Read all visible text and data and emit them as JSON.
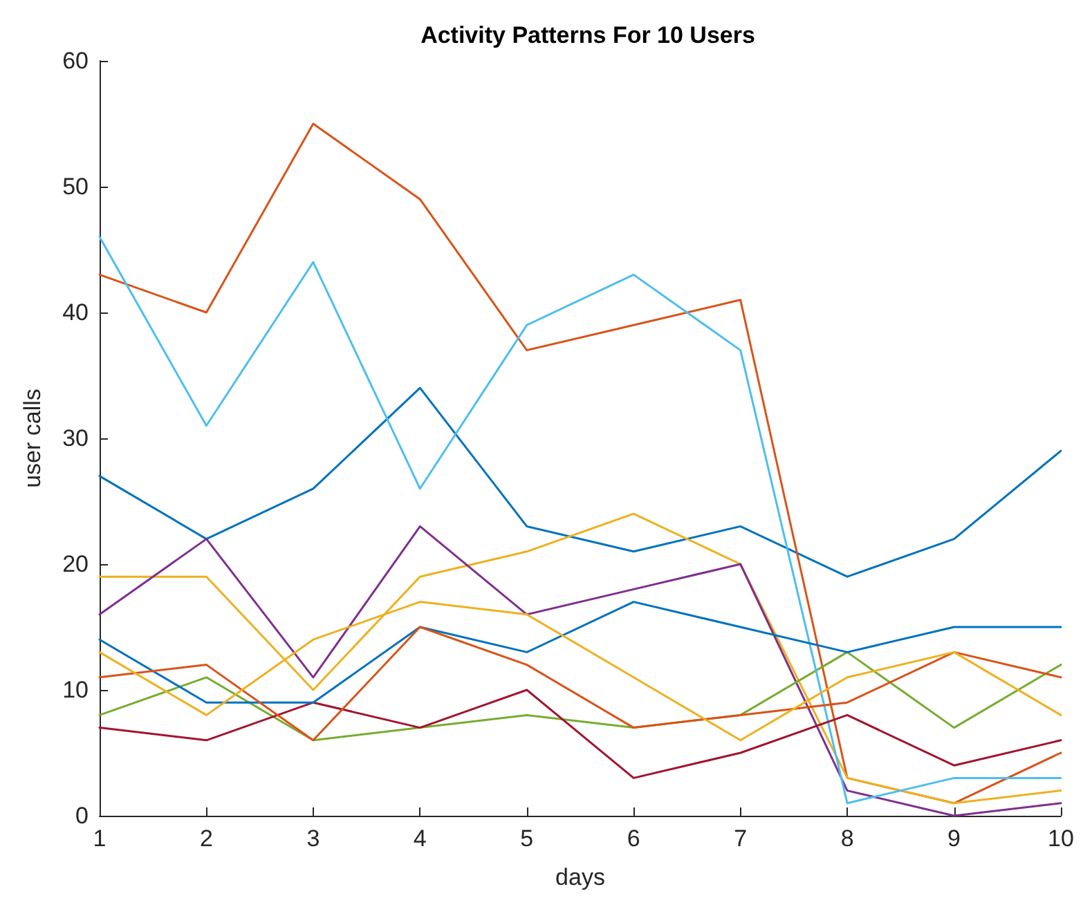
{
  "chart_data": {
    "type": "line",
    "title": "Activity Patterns For 10 Users",
    "xlabel": "days",
    "ylabel": "user calls",
    "x": [
      1,
      2,
      3,
      4,
      5,
      6,
      7,
      8,
      9,
      10
    ],
    "xlim": [
      1,
      10
    ],
    "xticks": [
      1,
      2,
      3,
      4,
      5,
      6,
      7,
      8,
      9,
      10
    ],
    "ylim": [
      0,
      60
    ],
    "yticks": [
      0,
      10,
      20,
      30,
      40,
      50,
      60
    ],
    "grid": false,
    "marker": "none",
    "line_style": "solid",
    "series": [
      {
        "color": "#0072bd",
        "values": [
          27,
          22,
          26,
          34,
          23,
          21,
          23,
          19,
          22,
          29
        ]
      },
      {
        "color": "#d95319",
        "values": [
          43,
          40,
          55,
          49,
          37,
          39,
          41,
          3,
          1,
          5
        ]
      },
      {
        "color": "#edb120",
        "values": [
          19,
          19,
          10,
          19,
          21,
          24,
          20,
          3,
          1,
          2
        ]
      },
      {
        "color": "#7e2f8e",
        "values": [
          16,
          22,
          11,
          23,
          16,
          18,
          20,
          2,
          0,
          1
        ]
      },
      {
        "color": "#77ac30",
        "values": [
          8,
          11,
          6,
          7,
          8,
          7,
          8,
          13,
          7,
          12
        ]
      },
      {
        "color": "#4dbeee",
        "values": [
          46,
          31,
          44,
          26,
          39,
          43,
          37,
          1,
          3,
          3
        ]
      },
      {
        "color": "#a2142f",
        "values": [
          7,
          6,
          9,
          7,
          10,
          3,
          5,
          8,
          4,
          6
        ]
      },
      {
        "color": "#0072bd",
        "values": [
          14,
          9,
          9,
          15,
          13,
          17,
          15,
          13,
          15,
          15
        ]
      },
      {
        "color": "#d95319",
        "values": [
          11,
          12,
          6,
          15,
          12,
          7,
          8,
          9,
          13,
          11
        ]
      },
      {
        "color": "#edb120",
        "values": [
          13,
          8,
          14,
          17,
          16,
          11,
          6,
          11,
          13,
          8
        ]
      }
    ]
  }
}
